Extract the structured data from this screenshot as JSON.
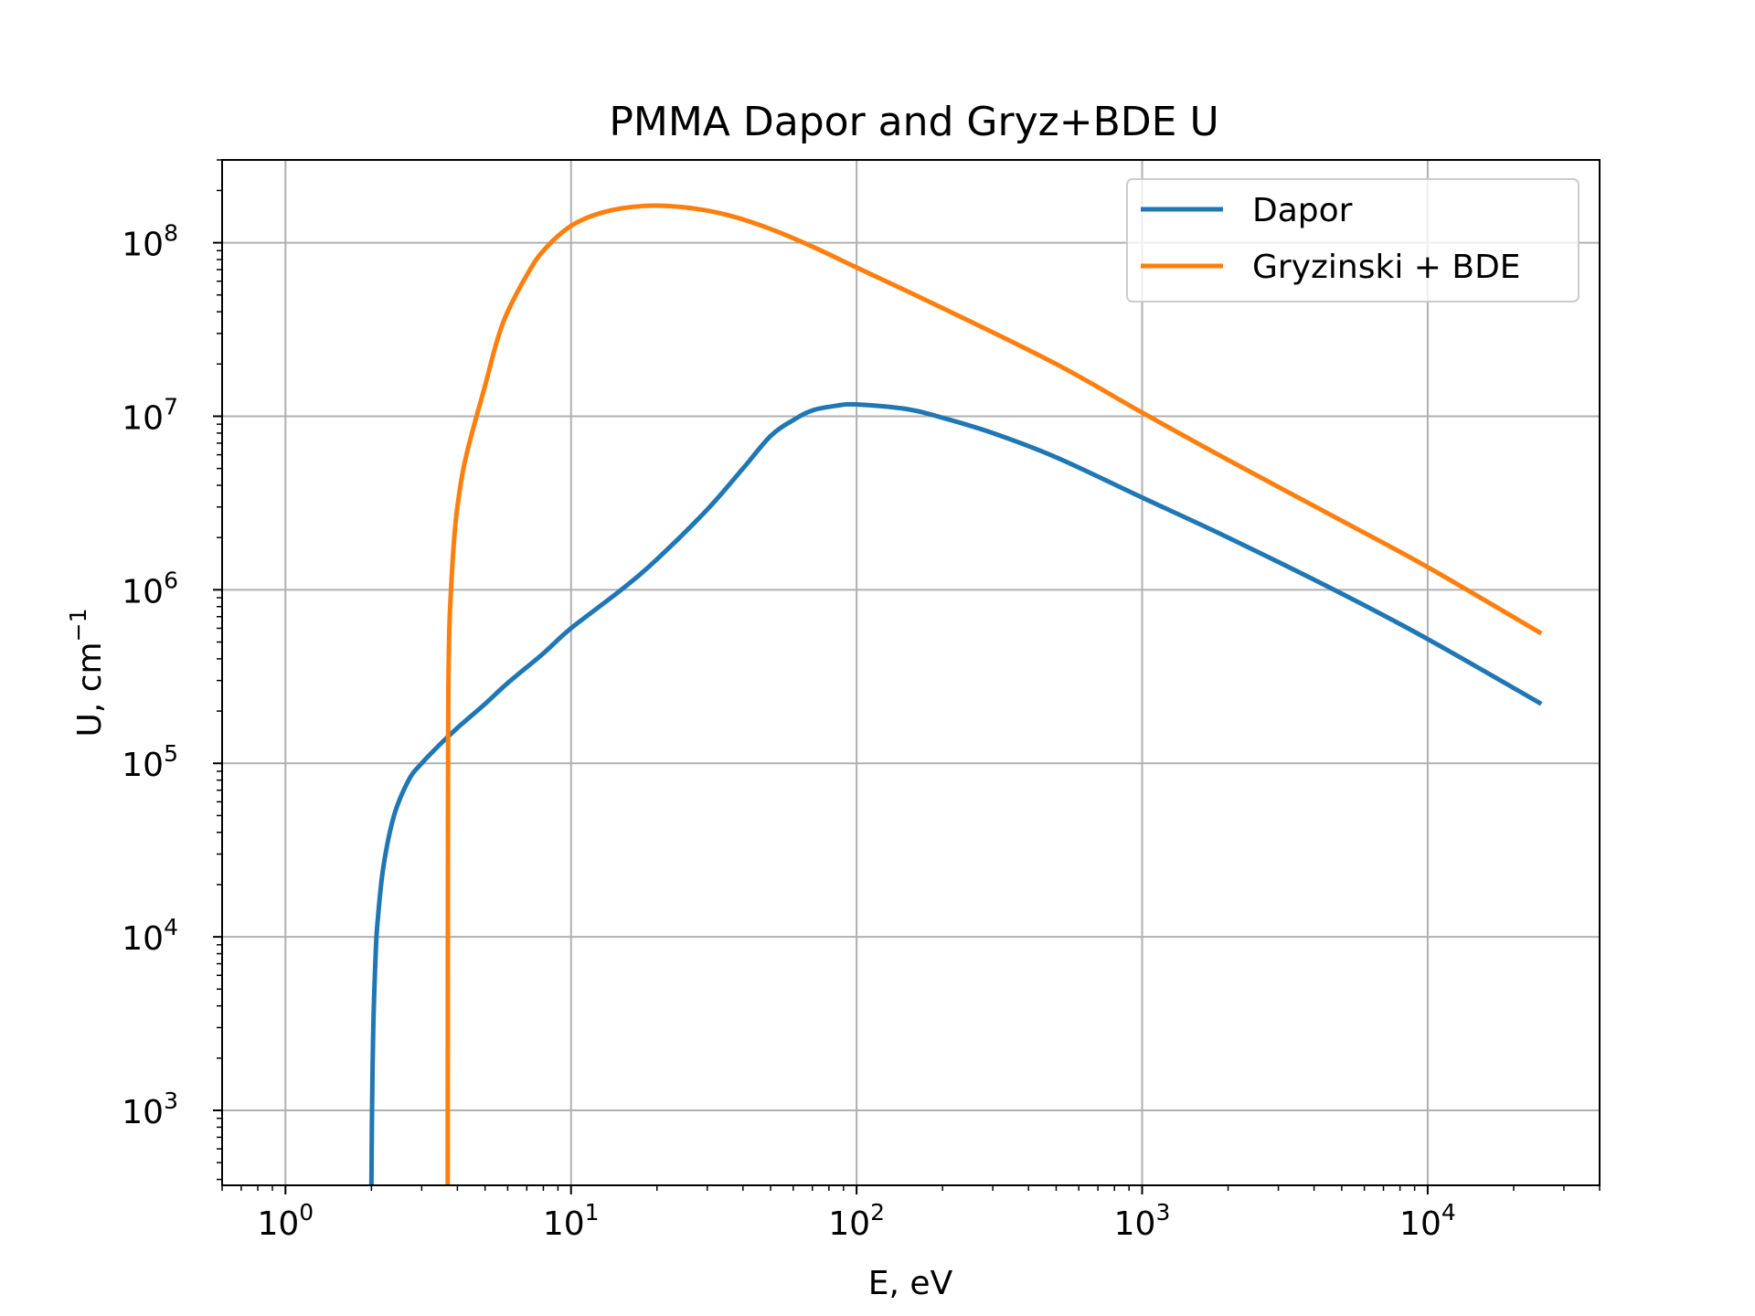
{
  "chart_data": {
    "type": "line",
    "title": "PMMA Dapor and Gryz+BDE U",
    "xlabel": "E, eV",
    "ylabel_base": "U, cm",
    "ylabel_sup": "−1",
    "xscale": "log",
    "yscale": "log",
    "xlim": [
      0.6,
      40000
    ],
    "ylim": [
      370,
      300000000
    ],
    "grid": true,
    "legend_position": "top-right",
    "x_ticks": [
      {
        "value": 1,
        "base": "10",
        "exp": "0"
      },
      {
        "value": 10,
        "base": "10",
        "exp": "1"
      },
      {
        "value": 100,
        "base": "10",
        "exp": "2"
      },
      {
        "value": 1000,
        "base": "10",
        "exp": "3"
      },
      {
        "value": 10000,
        "base": "10",
        "exp": "4"
      }
    ],
    "y_ticks": [
      {
        "value": 1000,
        "base": "10",
        "exp": "3"
      },
      {
        "value": 10000,
        "base": "10",
        "exp": "4"
      },
      {
        "value": 100000,
        "base": "10",
        "exp": "5"
      },
      {
        "value": 1000000,
        "base": "10",
        "exp": "6"
      },
      {
        "value": 10000000,
        "base": "10",
        "exp": "7"
      },
      {
        "value": 100000000,
        "base": "10",
        "exp": "8"
      }
    ],
    "series": [
      {
        "name": "Dapor",
        "color": "#1f77b4",
        "points": [
          [
            2.0,
            370
          ],
          [
            2.01,
            1000
          ],
          [
            2.03,
            3000
          ],
          [
            2.07,
            8000
          ],
          [
            2.1,
            12000
          ],
          [
            2.2,
            25000
          ],
          [
            2.4,
            50000
          ],
          [
            2.7,
            80000
          ],
          [
            3.0,
            100000
          ],
          [
            3.5,
            130000
          ],
          [
            4.0,
            160000
          ],
          [
            5.0,
            220000
          ],
          [
            6.0,
            290000
          ],
          [
            8.0,
            430000
          ],
          [
            10.0,
            600000
          ],
          [
            15.0,
            1000000
          ],
          [
            20.0,
            1500000
          ],
          [
            30.0,
            2900000
          ],
          [
            40.0,
            5000000
          ],
          [
            50.0,
            7700000
          ],
          [
            60.0,
            9500000
          ],
          [
            70.0,
            10800000
          ],
          [
            85.0,
            11500000
          ],
          [
            100.0,
            11700000
          ],
          [
            150.0,
            11000000
          ],
          [
            200.0,
            9800000
          ],
          [
            300.0,
            8000000
          ],
          [
            500.0,
            5800000
          ],
          [
            1000.0,
            3400000
          ],
          [
            2000.0,
            2000000
          ],
          [
            5000.0,
            950000
          ],
          [
            10000.0,
            520000
          ],
          [
            25000.0,
            220000
          ]
        ]
      },
      {
        "name": "Gryzinski + BDE",
        "color": "#ff7f0e",
        "points": [
          [
            3.7,
            370
          ],
          [
            3.71,
            100000
          ],
          [
            3.74,
            500000
          ],
          [
            3.8,
            1000000
          ],
          [
            3.9,
            2000000
          ],
          [
            4.0,
            3000000
          ],
          [
            4.2,
            5000000
          ],
          [
            4.5,
            8000000
          ],
          [
            5.0,
            15000000
          ],
          [
            5.5,
            27000000
          ],
          [
            6.0,
            40000000
          ],
          [
            7.0,
            65000000
          ],
          [
            8.0,
            90000000
          ],
          [
            10.0,
            125000000
          ],
          [
            13.0,
            150000000
          ],
          [
            18.0,
            163000000
          ],
          [
            25.0,
            160000000
          ],
          [
            35.0,
            145000000
          ],
          [
            50.0,
            120000000
          ],
          [
            70.0,
            95000000
          ],
          [
            100.0,
            72000000
          ],
          [
            200.0,
            42000000
          ],
          [
            500.0,
            20000000
          ],
          [
            1000.0,
            10500000
          ],
          [
            2000.0,
            5600000
          ],
          [
            5000.0,
            2500000
          ],
          [
            10000.0,
            1350000
          ],
          [
            25000.0,
            560000
          ]
        ]
      }
    ]
  }
}
